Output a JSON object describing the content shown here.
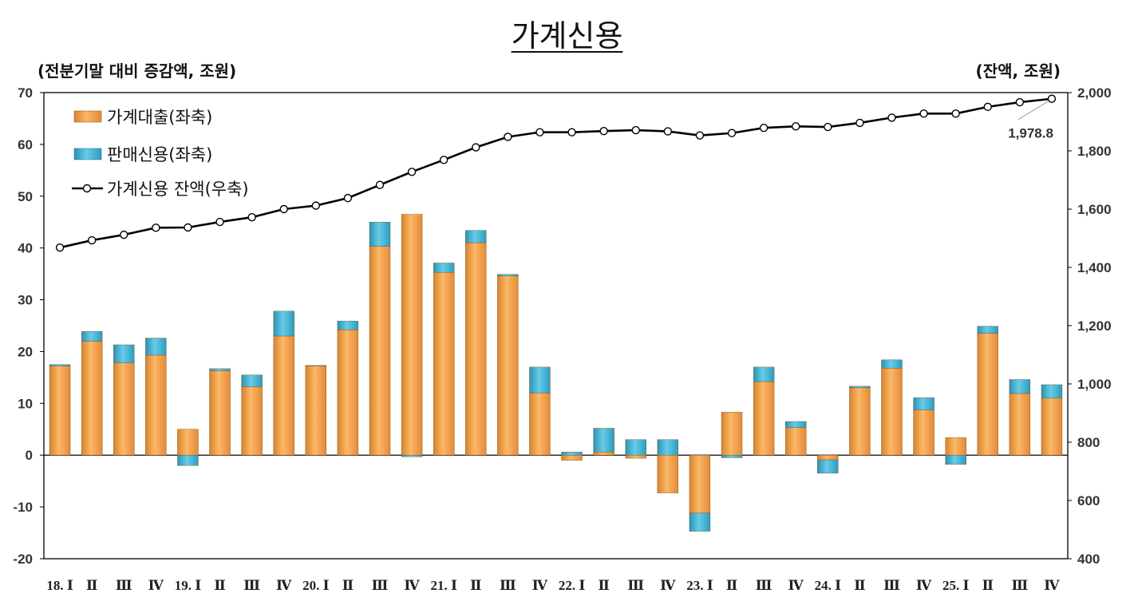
{
  "chart_data": {
    "type": "bar",
    "title": "가계신용",
    "left_axis_label": "(전분기말 대비 증감액, 조원)",
    "right_axis_label": "(잔액, 조원)",
    "categories": [
      "18. Ⅰ",
      "Ⅱ",
      "Ⅲ",
      "Ⅳ",
      "19. Ⅰ",
      "Ⅱ",
      "Ⅲ",
      "Ⅳ",
      "20. Ⅰ",
      "Ⅱ",
      "Ⅲ",
      "Ⅳ",
      "21. Ⅰ",
      "Ⅱ",
      "Ⅲ",
      "Ⅳ",
      "22. Ⅰ",
      "Ⅱ",
      "Ⅲ",
      "Ⅳ",
      "23. Ⅰ",
      "Ⅱ",
      "Ⅲ",
      "Ⅳ",
      "24. Ⅰ",
      "Ⅱ",
      "Ⅲ",
      "Ⅳ",
      "25. Ⅰ",
      "Ⅱ",
      "Ⅲ",
      "Ⅳ"
    ],
    "ylim_left": [
      -20,
      70
    ],
    "yticks_left": [
      "-20",
      "-10",
      "0",
      "10",
      "20",
      "30",
      "40",
      "50",
      "60",
      "70"
    ],
    "ylim_right": [
      400,
      2000
    ],
    "yticks_right": [
      "400",
      "600",
      "800",
      "1,000",
      "1,200",
      "1,400",
      "1,600",
      "1,800",
      "2,000"
    ],
    "legend_position": "top-left",
    "series": [
      {
        "name": "가계대출(좌축)",
        "kind": "bar-stacked",
        "color": "#F4A052",
        "values": [
          17.2,
          22.0,
          17.8,
          19.3,
          5.0,
          16.3,
          13.2,
          23.0,
          17.3,
          24.2,
          40.3,
          46.5,
          35.3,
          41.0,
          34.6,
          12.0,
          -1.0,
          0.6,
          -0.6,
          -7.3,
          -11.2,
          8.3,
          14.2,
          5.3,
          -0.9,
          13.0,
          16.8,
          8.7,
          3.4,
          23.5,
          11.9,
          11.0
        ]
      },
      {
        "name": "판매신용(좌축)",
        "kind": "bar-stacked",
        "color": "#3FB2D2",
        "values": [
          0.3,
          1.9,
          3.5,
          3.3,
          -2.0,
          0.4,
          2.3,
          4.8,
          0.0,
          1.7,
          4.7,
          -0.3,
          1.8,
          2.4,
          0.3,
          5.0,
          0.6,
          4.6,
          3.0,
          3.0,
          -3.5,
          -0.5,
          2.8,
          1.2,
          -2.6,
          0.3,
          1.6,
          2.4,
          -1.8,
          1.4,
          2.7,
          2.6
        ]
      },
      {
        "name": "가계신용 잔액(우축)",
        "kind": "line",
        "color": "#000000",
        "values": [
          1468,
          1493,
          1512,
          1536,
          1537,
          1556,
          1572,
          1600,
          1612,
          1638,
          1683,
          1728,
          1769,
          1812,
          1848,
          1864,
          1864,
          1868,
          1871,
          1867,
          1853,
          1861,
          1879,
          1884,
          1882,
          1896,
          1914,
          1928,
          1928,
          1951,
          1967,
          1978.8
        ]
      }
    ],
    "annotations": [
      {
        "text": "1,978.8"
      }
    ]
  }
}
